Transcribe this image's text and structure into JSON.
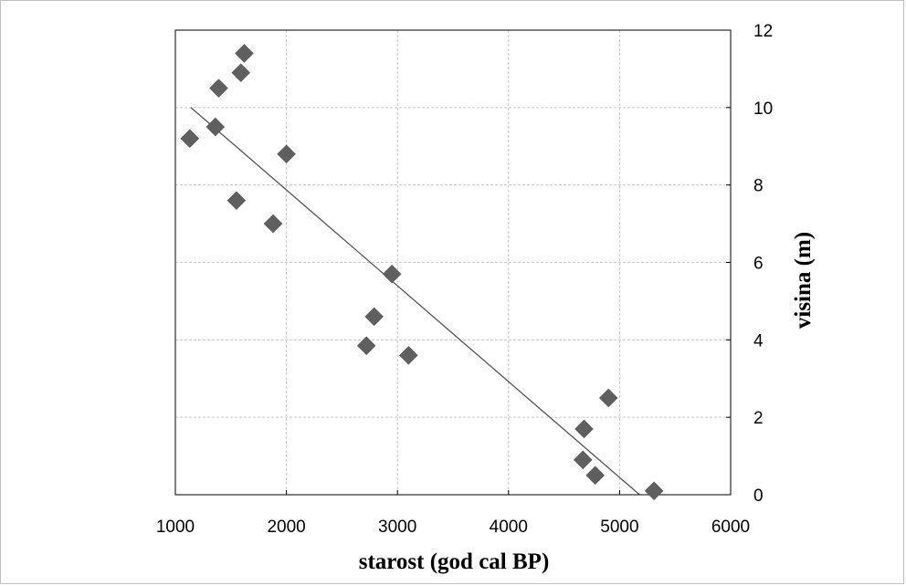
{
  "chart_data": {
    "type": "scatter",
    "title": "",
    "xlabel": "starost (god cal BP)",
    "ylabel": "visina (m)",
    "xlim": [
      1000,
      6000
    ],
    "ylim": [
      0,
      12
    ],
    "xticks": [
      1000,
      2000,
      3000,
      4000,
      5000,
      6000
    ],
    "yticks": [
      0,
      2,
      4,
      6,
      8,
      10,
      12
    ],
    "y_axis_side": "right",
    "grid": true,
    "legend": "none",
    "marker": "diamond",
    "colors": {
      "marker": "#5f5f5f",
      "trendline": "#555555",
      "grid": "#c8c8c8",
      "axis": "#000000"
    },
    "series": [
      {
        "x": [
          1130,
          1360,
          1390,
          1550,
          1590,
          1620,
          1880,
          2000,
          2720,
          2790,
          2950,
          3100,
          4670,
          4680,
          4780,
          4900,
          5310
        ],
        "y": [
          9.2,
          9.5,
          10.5,
          7.6,
          10.9,
          11.4,
          7.0,
          8.8,
          3.85,
          4.6,
          5.7,
          3.6,
          0.9,
          1.7,
          0.5,
          2.5,
          0.1
        ]
      }
    ],
    "trendline": {
      "x": [
        1140,
        5180
      ],
      "y": [
        10.0,
        0.0
      ]
    }
  }
}
